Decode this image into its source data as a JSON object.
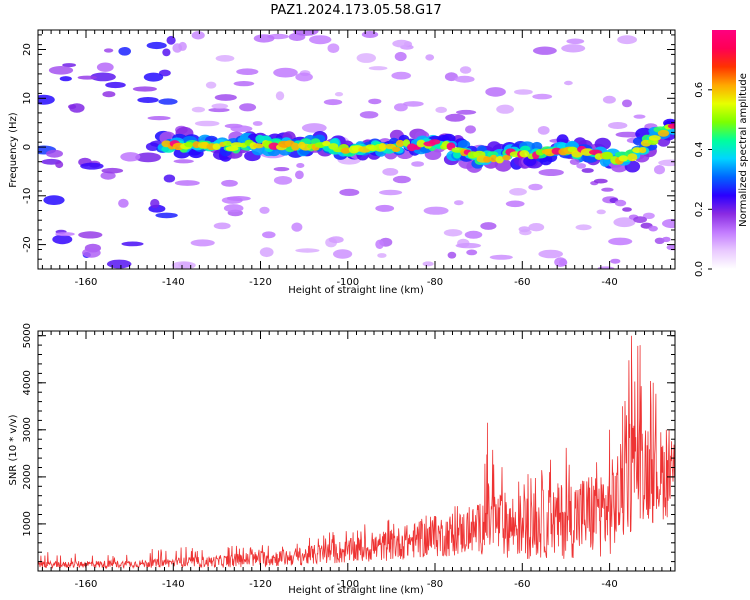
{
  "figure": {
    "title": "PAZ1.2024.173.05.58.G17"
  },
  "chart_data": [
    {
      "type": "heatmap",
      "xlabel": "Height of straight line (km)",
      "ylabel": "Frequency (Hz)",
      "xlim": [
        -171,
        -25
      ],
      "ylim": [
        -25,
        24
      ],
      "xticks": [
        -160,
        -140,
        -120,
        -100,
        -80,
        -60,
        -40
      ],
      "yticks": [
        -20,
        -10,
        0,
        10,
        20
      ],
      "colorbar": {
        "label": "Normalized spectral amplitude",
        "range": [
          0,
          0.8
        ],
        "ticks": [
          0.0,
          0.2,
          0.4,
          0.6
        ],
        "colors": [
          "#ffffff",
          "#e9c9ff",
          "#c27bff",
          "#8a2be2",
          "#2a00ff",
          "#0066ff",
          "#00d5ff",
          "#00ff9c",
          "#7dff00",
          "#e7ff00",
          "#ffa800",
          "#ff3300",
          "#ff0055",
          "#ff007f"
        ]
      },
      "ridge": {
        "x": [
          -140,
          -133,
          -127,
          -120,
          -113,
          -106,
          -100,
          -94,
          -88,
          -82,
          -78,
          -74,
          -70,
          -66,
          -62,
          -58,
          -54,
          -50,
          -46,
          -42,
          -38,
          -35,
          -32,
          -29,
          -26
        ],
        "y": [
          0.5,
          0.2,
          0.2,
          0.8,
          0.3,
          0.4,
          -0.8,
          -0.2,
          0.2,
          0.8,
          0.5,
          -1.0,
          -2.0,
          -2.5,
          -1.0,
          -1.5,
          -1.0,
          -0.5,
          -1.0,
          -1.5,
          -2.5,
          -1.5,
          0.5,
          2.5,
          4.0
        ]
      }
    },
    {
      "type": "line",
      "xlabel": "Height of straight line (km)",
      "ylabel": "SNR (10 * v/v)",
      "xlim": [
        -171,
        -25
      ],
      "ylim": [
        0,
        5100
      ],
      "xticks": [
        -160,
        -140,
        -120,
        -100,
        -80,
        -60,
        -40
      ],
      "yticks": [
        1000,
        2000,
        3000,
        4000,
        5000
      ],
      "series": [
        {
          "color": "#ee3333",
          "x": [
            -171,
            -165,
            -160,
            -155,
            -150,
            -145,
            -140,
            -135,
            -130,
            -125,
            -120,
            -115,
            -110,
            -105,
            -100,
            -95,
            -90,
            -85,
            -80,
            -75,
            -70,
            -68,
            -65,
            -60,
            -55,
            -50,
            -45,
            -40,
            -37,
            -35,
            -33,
            -30,
            -27,
            -25
          ],
          "mean": [
            140,
            130,
            150,
            140,
            150,
            160,
            180,
            190,
            200,
            230,
            260,
            280,
            320,
            370,
            420,
            480,
            560,
            640,
            720,
            780,
            900,
            1100,
            1000,
            950,
            1000,
            1100,
            1200,
            1300,
            1700,
            2100,
            2300,
            2100,
            2000,
            2100
          ],
          "amp": [
            70,
            70,
            80,
            80,
            80,
            90,
            100,
            110,
            130,
            150,
            170,
            180,
            200,
            230,
            260,
            300,
            340,
            380,
            430,
            470,
            520,
            800,
            700,
            700,
            750,
            850,
            900,
            1000,
            1100,
            1300,
            1200,
            1100,
            900,
            800
          ],
          "peak": [
            430,
            350,
            400,
            380,
            350,
            480,
            600,
            520,
            500,
            550,
            580,
            600,
            700,
            820,
            980,
            1000,
            1100,
            1100,
            1280,
            1400,
            1500,
            3150,
            2400,
            2300,
            2400,
            2700,
            2600,
            3000,
            3500,
            5000,
            4800,
            4000,
            3000,
            3100
          ]
        }
      ]
    }
  ]
}
